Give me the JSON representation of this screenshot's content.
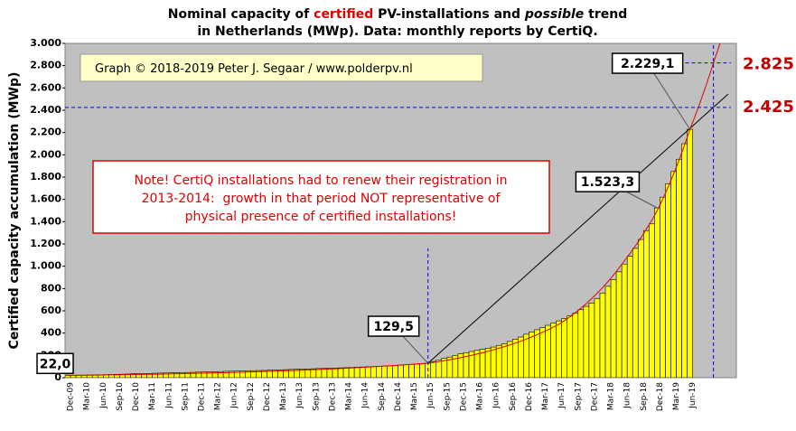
{
  "chart_data": {
    "type": "bar",
    "title": [
      [
        "Nominal capacity of ",
        "certified",
        " PV-installations and ",
        "possible",
        " trend"
      ],
      "in Netherlands (MWp). Data: monthly reports by CertiQ."
    ],
    "y_label": "Certified capacity accumulation (MWp)",
    "copyright": "Graph © 2018-2019 Peter J. Segaar / www.polderpv.nl",
    "note": [
      "Note! CertiQ installations had to renew their registration in",
      "2013-2014:  growth in that period NOT representative of",
      "physical presence of certified installations!"
    ],
    "color": "#ffff00",
    "categories": [
      "Dec-09",
      null,
      null,
      "Mar-10",
      null,
      null,
      "Jun-10",
      null,
      null,
      "Sep-10",
      null,
      null,
      "Dec-10",
      null,
      null,
      "Mar-11",
      null,
      null,
      "Jun-11",
      null,
      null,
      "Sep-11",
      null,
      null,
      "Dec-11",
      null,
      null,
      "Mar-12",
      null,
      null,
      "Jun-12",
      null,
      null,
      "Sep-12",
      null,
      null,
      "Dec-12",
      null,
      null,
      "Mar-13",
      null,
      null,
      "Jun-13",
      null,
      null,
      "Sep-13",
      null,
      null,
      "Dec-13",
      null,
      null,
      "Mar-14",
      null,
      null,
      "Jun-14",
      null,
      null,
      "Sep-14",
      null,
      null,
      "Dec-14",
      null,
      null,
      "Mar-15",
      null,
      null,
      "Jun-15",
      null,
      null,
      "Sep-15",
      null,
      null,
      "Dec-15",
      null,
      null,
      "Mar-16",
      null,
      null,
      "Jun-16",
      null,
      null,
      "Sep-16",
      null,
      null,
      "Dec-16",
      null,
      null,
      "Mar-17",
      null,
      null,
      "Jun-17",
      null,
      null,
      "Sep-17",
      null,
      null,
      "Dec-17",
      null,
      null,
      "Mar-18",
      null,
      null,
      "Jun-18",
      null,
      null,
      "Sep-18",
      null,
      null,
      "Dec-18",
      null,
      null,
      "Mar-19",
      null,
      null,
      "Jun-19",
      null,
      null,
      null,
      null,
      null,
      null,
      null,
      null
    ],
    "values": [
      22.0,
      22,
      23,
      23,
      24,
      25,
      26,
      27,
      28,
      30,
      31,
      33,
      35,
      36,
      37,
      38,
      40,
      41,
      42,
      43,
      44,
      46,
      47,
      48,
      50,
      51,
      53,
      54,
      55,
      57,
      58,
      60,
      61,
      62,
      63,
      64,
      65,
      67,
      68,
      70,
      72,
      74,
      76,
      77,
      78,
      80,
      82,
      83,
      85,
      86,
      88,
      90,
      92,
      94,
      96,
      98,
      100,
      102,
      105,
      107,
      110,
      113,
      116,
      119,
      122,
      126,
      129.5,
      145,
      160,
      175,
      185,
      200,
      215,
      225,
      235,
      245,
      255,
      265,
      275,
      290,
      305,
      325,
      345,
      365,
      390,
      410,
      430,
      450,
      470,
      490,
      510,
      530,
      555,
      580,
      610,
      640,
      670,
      710,
      760,
      820,
      880,
      950,
      1020,
      1090,
      1160,
      1240,
      1320,
      1380,
      1523.3,
      1620,
      1740,
      1850,
      1960,
      2100,
      2229.1,
      null,
      null,
      null,
      null,
      null,
      null,
      null,
      null
    ],
    "value_labels": [
      "22,0",
      null,
      null,
      null,
      null,
      null,
      null,
      null,
      null,
      null,
      null,
      null,
      null,
      null,
      null,
      null,
      null,
      null,
      null,
      null,
      null,
      null,
      null,
      null,
      null,
      null,
      null,
      null,
      null,
      null,
      null,
      null,
      null,
      null,
      null,
      null,
      null,
      null,
      null,
      null,
      null,
      null,
      null,
      null,
      null,
      null,
      null,
      null,
      null,
      null,
      null,
      null,
      null,
      null,
      null,
      null,
      null,
      null,
      null,
      null,
      null,
      null,
      null,
      null,
      null,
      null,
      "129,5",
      null,
      null,
      null,
      null,
      null,
      null,
      null,
      null,
      null,
      null,
      null,
      null,
      null,
      null,
      null,
      null,
      null,
      null,
      null,
      null,
      null,
      null,
      null,
      null,
      null,
      null,
      null,
      null,
      null,
      null,
      null,
      null,
      null,
      null,
      null,
      null,
      null,
      null,
      null,
      null,
      null,
      "1.523,3",
      null,
      null,
      null,
      null,
      null,
      "2.229,1",
      null,
      null,
      null,
      null,
      null,
      null,
      null,
      null
    ],
    "ylim": [
      0,
      3000
    ],
    "yticks": [
      0,
      200,
      400,
      600,
      800,
      {
        "value": 1000,
        "label": "1.000"
      },
      {
        "value": 1200,
        "label": "1.200"
      },
      {
        "value": 1400,
        "label": "1.400"
      },
      {
        "value": 1600,
        "label": "1.600"
      },
      {
        "value": 1800,
        "label": "1.800"
      },
      {
        "value": 2000,
        "label": "2.000"
      },
      {
        "value": 2200,
        "label": "2.200"
      },
      {
        "value": 2400,
        "label": "2.400"
      },
      {
        "value": 2600,
        "label": "2.600"
      },
      {
        "value": 2800,
        "label": "2.800"
      },
      {
        "value": 3000,
        "label": "3.000"
      }
    ],
    "reference_lines": [
      {
        "value": 2425,
        "label": "2.425"
      },
      {
        "value": 2825,
        "label": "2.825"
      }
    ],
    "trends": [
      {
        "color": "#000000",
        "points": [
          [
            66,
            129.5
          ],
          [
            121,
            2545
          ]
        ]
      },
      {
        "color": "#e00000",
        "points": [
          [
            0,
            20
          ],
          [
            66,
            130
          ],
          [
            90,
            480
          ],
          [
            102,
            1050
          ],
          [
            108,
            1500
          ],
          [
            114,
            2229
          ],
          [
            118.3,
            2825
          ],
          [
            119.5,
            3000
          ]
        ]
      }
    ],
    "guides": [
      {
        "x": 66,
        "value": 1160
      },
      {
        "x": 118.3,
        "value": 3000
      }
    ],
    "grid": false
  }
}
